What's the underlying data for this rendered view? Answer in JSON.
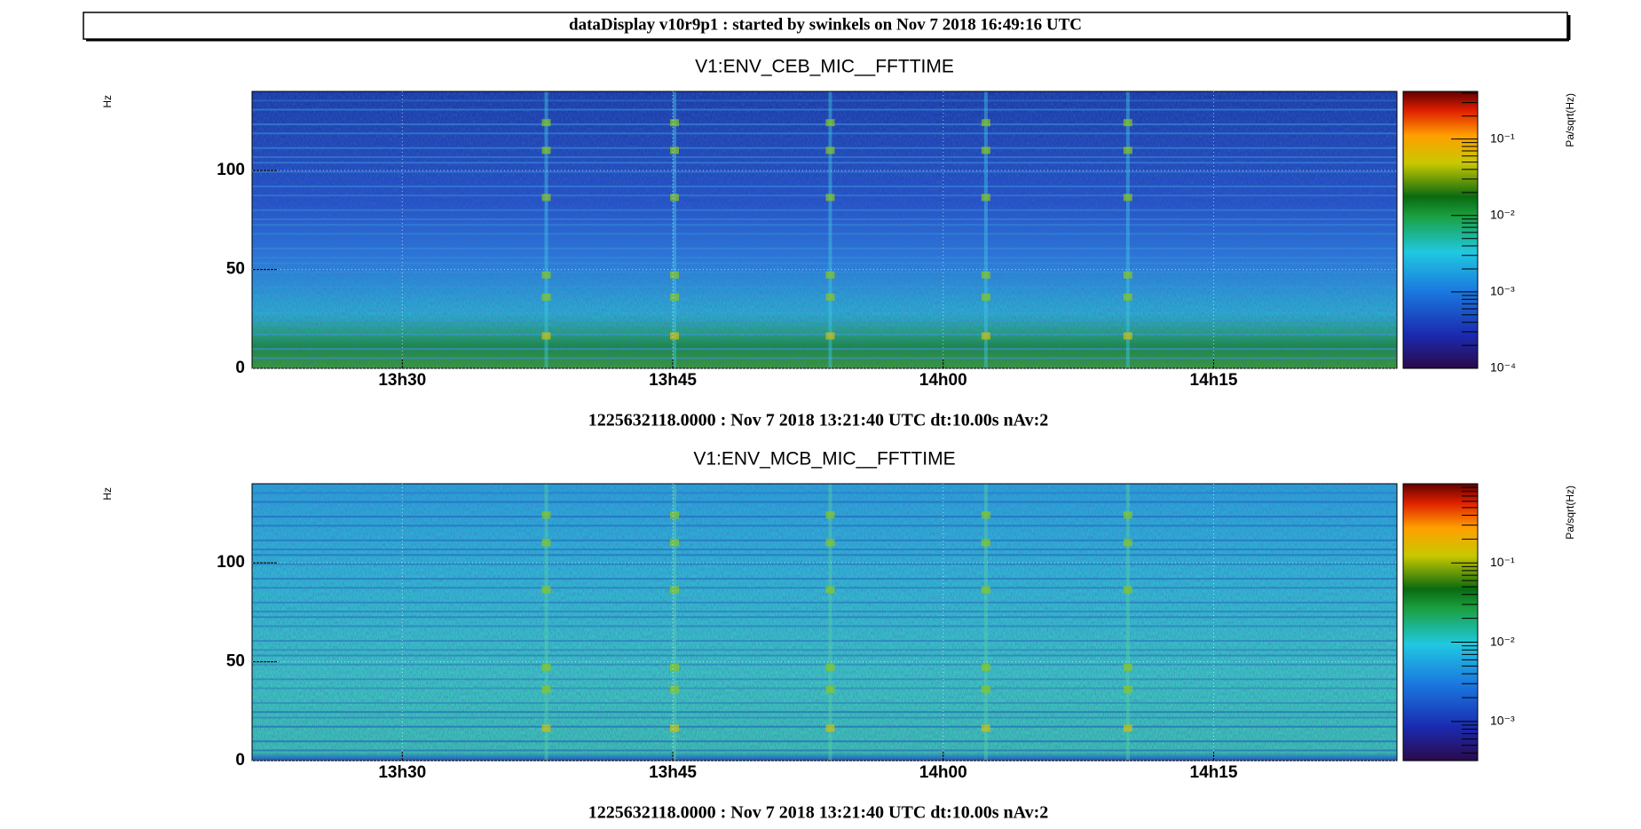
{
  "header": {
    "title": "dataDisplay v10r9p1 : started by swinkels on Nov  7 2018 16:49:16 UTC"
  },
  "chart_data": [
    {
      "type": "spectrogram",
      "title": "V1:ENV_CEB_MIC__FFTTIME",
      "ylabel": "Hz",
      "zlabel": "Pa/sqrt(Hz)",
      "xlim": [
        1225632118,
        1225635928
      ],
      "xticks": [
        {
          "value": 1225632618,
          "label": "13h30"
        },
        {
          "value": 1225633518,
          "label": "13h45"
        },
        {
          "value": 1225634418,
          "label": "14h00"
        },
        {
          "value": 1225635318,
          "label": "14h15"
        }
      ],
      "ylim": [
        0,
        140
      ],
      "yticks": [
        0,
        50,
        100
      ],
      "zlog": true,
      "zlim": [
        0.0001,
        0.42
      ],
      "zticks": [
        {
          "value": 0.0001,
          "label": "10⁻⁴"
        },
        {
          "value": 0.001,
          "label": "10⁻³"
        },
        {
          "value": 0.01,
          "label": "10⁻²"
        },
        {
          "value": 0.1,
          "label": "10⁻¹"
        }
      ],
      "caption": "1225632118.0000 : Nov  7 2018 13:21:40 UTC dt:10.00s nAv:2"
    },
    {
      "type": "spectrogram",
      "title": "V1:ENV_MCB_MIC__FFTTIME",
      "ylabel": "Hz",
      "zlabel": "Pa/sqrt(Hz)",
      "xlim": [
        1225632118,
        1225635928
      ],
      "xticks": [
        {
          "value": 1225632618,
          "label": "13h30"
        },
        {
          "value": 1225633518,
          "label": "13h45"
        },
        {
          "value": 1225634418,
          "label": "14h00"
        },
        {
          "value": 1225635318,
          "label": "14h15"
        }
      ],
      "ylim": [
        0,
        140
      ],
      "yticks": [
        0,
        50,
        100
      ],
      "zlog": true,
      "zlim": [
        0.00032,
        1
      ],
      "zticks": [
        {
          "value": 0.001,
          "label": "10⁻³"
        },
        {
          "value": 0.01,
          "label": "10⁻²"
        },
        {
          "value": 0.1,
          "label": "10⁻¹"
        }
      ],
      "caption": "1225632118.0000 : Nov  7 2018 13:21:40 UTC dt:10.00s nAv:2"
    }
  ]
}
